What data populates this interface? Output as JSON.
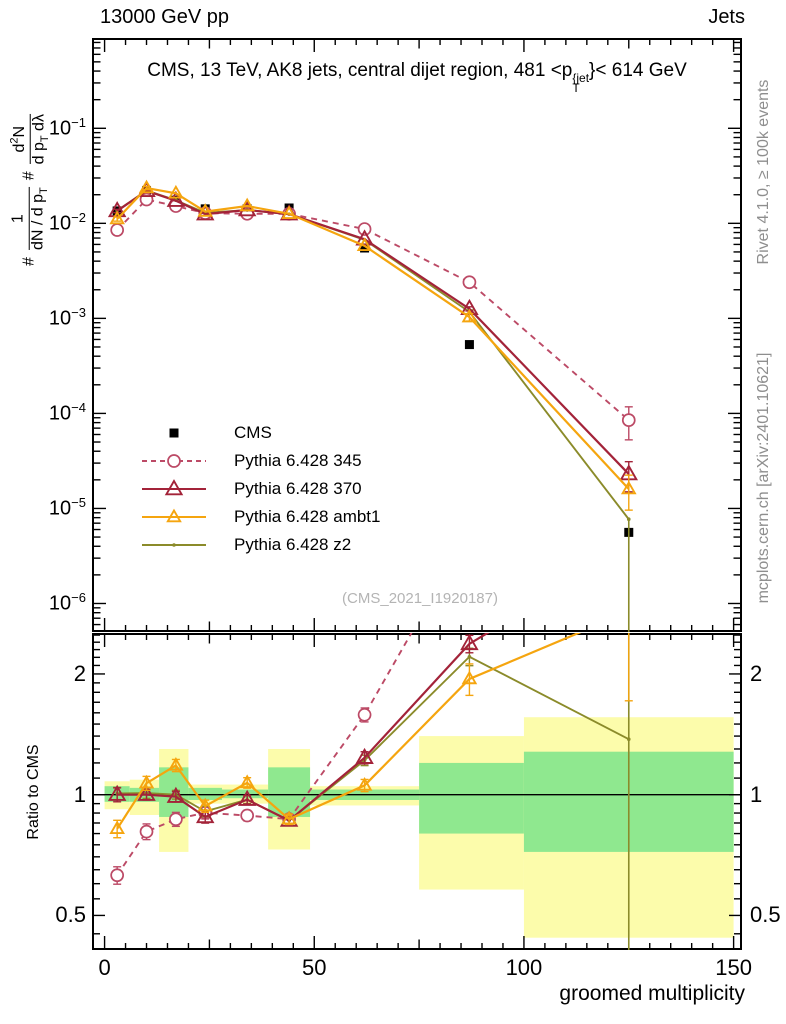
{
  "header": {
    "beam": "13000 GeV pp",
    "region": "Jets"
  },
  "title": {
    "pre": "CMS, 13 TeV, AK8 jets, central dijet region, 481 <p",
    "sup": "{jet",
    "sub": "T",
    "post": "}< 614 GeV"
  },
  "watermark": "(CMS_2021_I1920187)",
  "side_notes": {
    "top": "Rivet 4.1.0, ≥ 100k events",
    "bottom": "mcplots.cern.ch [arXiv:2401.10621]"
  },
  "y_label": {
    "hash1": "#",
    "f1n": "1",
    "f1d_a": "dN / d p",
    "f1d_sub": "T",
    "hash2": "#",
    "f2n_a": "d",
    "f2n_sup": "2",
    "f2n_b": "N",
    "f2d_a": "d p",
    "f2d_sub": "T",
    "f2d_b": " dλ"
  },
  "axes": {
    "x": {
      "label": "groomed multiplicity",
      "min": -3,
      "max": 152,
      "major_ticks": [
        0,
        50,
        100,
        150
      ],
      "minor_step": 5
    },
    "y_main": {
      "scale": "log10",
      "min_exp": -6.3,
      "max_exp": -0.05,
      "tick_exps": [
        -1,
        -2,
        -3,
        -4,
        -5,
        -6
      ]
    },
    "y_ratio": {
      "label": "Ratio to CMS",
      "scale": "log",
      "min": 0.41,
      "max": 2.53,
      "ticks": [
        "2",
        "1",
        "0.5"
      ],
      "tick_values": [
        2,
        1,
        0.5
      ]
    }
  },
  "chart_data": {
    "type": "line",
    "title": "CMS, 13 TeV, AK8 jets, central dijet region, 481 < pT^{jet} < 614 GeV",
    "xlabel": "groomed multiplicity",
    "ylabel": "# 1/(dN/dpT) d2N/(dpT dlambda)",
    "xlim": [
      -3,
      152
    ],
    "x": [
      3,
      10,
      17,
      24,
      34,
      44,
      62,
      87,
      125
    ],
    "series": [
      {
        "name": "CMS",
        "color": "#000000",
        "line": "none",
        "marker": "square",
        "reference": true,
        "values": [
          0.0135,
          0.022,
          0.0175,
          0.0142,
          0.0142,
          0.0145,
          0.0055,
          0.00053,
          5.6e-06
        ],
        "err": [
          0,
          0,
          0,
          0,
          0,
          0,
          0,
          0,
          0
        ]
      },
      {
        "name": "Pythia 6.428 345",
        "color": "#bc4a66",
        "line": "dashed",
        "marker": "circle",
        "reference": false,
        "values": [
          0.0085,
          0.0178,
          0.0152,
          0.0128,
          0.0126,
          0.0126,
          0.0087,
          0.0024,
          8.5e-05
        ],
        "err": [
          0.05,
          0.045,
          0.04,
          0.035,
          0.03,
          0.03,
          0.04,
          0.05,
          0.38
        ]
      },
      {
        "name": "Pythia 6.428 370",
        "color": "#a32339",
        "line": "solid",
        "marker": "triangle-big",
        "reference": false,
        "values": [
          0.0135,
          0.022,
          0.0173,
          0.0125,
          0.0138,
          0.0125,
          0.0068,
          0.00126,
          2.3e-05
        ],
        "err": [
          0.04,
          0.03,
          0.03,
          0.035,
          0.025,
          0.025,
          0.035,
          0.05,
          0.35
        ]
      },
      {
        "name": "Pythia 6.428 ambt1",
        "color": "#f5a50f",
        "line": "solid",
        "marker": "triangle",
        "reference": false,
        "values": [
          0.0111,
          0.0235,
          0.0207,
          0.0133,
          0.0152,
          0.0126,
          0.0058,
          0.00103,
          1.6e-05
        ],
        "err": [
          0.05,
          0.04,
          0.035,
          0.035,
          0.03,
          0.03,
          0.035,
          0.09,
          0.4
        ]
      },
      {
        "name": "Pythia 6.428 z2",
        "color": "#8b8b2a",
        "line": "solid",
        "marker": "dot",
        "reference": false,
        "tail_full_range": true,
        "values": [
          0.0136,
          0.0222,
          0.0175,
          0.0129,
          0.0138,
          0.0125,
          0.0067,
          0.00117,
          7.7e-06
        ],
        "err": [
          0.035,
          0.03,
          0.025,
          0.03,
          0.022,
          0.022,
          0.03,
          0.05,
          0
        ]
      }
    ],
    "ratio_definition": "MC / CMS",
    "ratio_bands": {
      "yellow": "#fcfcab",
      "green": "#8fe88f",
      "bins": [
        {
          "x0": 0,
          "x1": 6,
          "yellow": [
            0.92,
            1.08
          ],
          "green": [
            0.96,
            1.05
          ]
        },
        {
          "x0": 6,
          "x1": 13,
          "yellow": [
            0.89,
            1.09
          ],
          "green": [
            0.96,
            1.04
          ]
        },
        {
          "x0": 13,
          "x1": 20,
          "yellow": [
            0.72,
            1.3
          ],
          "green": [
            0.88,
            1.17
          ]
        },
        {
          "x0": 20,
          "x1": 28,
          "yellow": [
            0.95,
            1.06
          ],
          "green": [
            0.97,
            1.04
          ]
        },
        {
          "x0": 28,
          "x1": 39,
          "yellow": [
            0.95,
            1.06
          ],
          "green": [
            0.98,
            1.03
          ]
        },
        {
          "x0": 39,
          "x1": 49,
          "yellow": [
            0.73,
            1.3
          ],
          "green": [
            0.88,
            1.17
          ]
        },
        {
          "x0": 49,
          "x1": 75,
          "yellow": [
            0.94,
            1.05
          ],
          "green": [
            0.97,
            1.03
          ]
        },
        {
          "x0": 75,
          "x1": 100,
          "yellow": [
            0.58,
            1.4
          ],
          "green": [
            0.8,
            1.2
          ]
        },
        {
          "x0": 100,
          "x1": 150,
          "yellow": [
            0.44,
            1.56
          ],
          "green": [
            0.72,
            1.28
          ]
        }
      ]
    }
  }
}
